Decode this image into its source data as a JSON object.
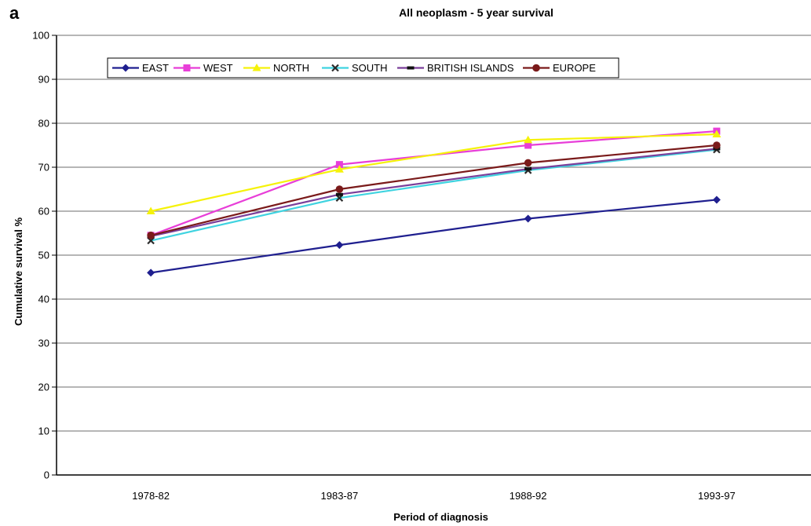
{
  "panel_label": "a",
  "chart_data": {
    "type": "line",
    "title": "All neoplasm - 5 year survival",
    "xlabel": "Period of diagnosis",
    "ylabel": "Cumulative survival %",
    "categories": [
      "1978-82",
      "1983-87",
      "1988-92",
      "1993-97"
    ],
    "ylim": [
      0,
      100
    ],
    "yticks": [
      0,
      10,
      20,
      30,
      40,
      50,
      60,
      70,
      80,
      90,
      100
    ],
    "grid": true,
    "legend_position": "top",
    "series": [
      {
        "name": "EAST",
        "values": [
          46,
          52.3,
          58.3,
          62.6
        ],
        "color": "#1f1f8f",
        "marker": "diamond"
      },
      {
        "name": "WEST",
        "values": [
          54.5,
          70.6,
          75,
          78.2
        ],
        "color": "#e83ed8",
        "marker": "square"
      },
      {
        "name": "NORTH",
        "values": [
          60,
          69.5,
          76.2,
          77.5
        ],
        "color": "#f5f20a",
        "marker": "triangle"
      },
      {
        "name": "SOUTH",
        "values": [
          53.3,
          63,
          69.3,
          74
        ],
        "color": "#2a2a2a",
        "marker": "x",
        "line_color": "#3fd3e0"
      },
      {
        "name": "BRITISH ISLANDS",
        "values": [
          54.3,
          63.8,
          69.6,
          74.2
        ],
        "color": "#111111",
        "marker": "bar",
        "line_color": "#7a3f9a"
      },
      {
        "name": "EUROPE",
        "values": [
          54.5,
          65,
          71,
          75
        ],
        "color": "#7a1a1a",
        "marker": "circle"
      }
    ]
  }
}
